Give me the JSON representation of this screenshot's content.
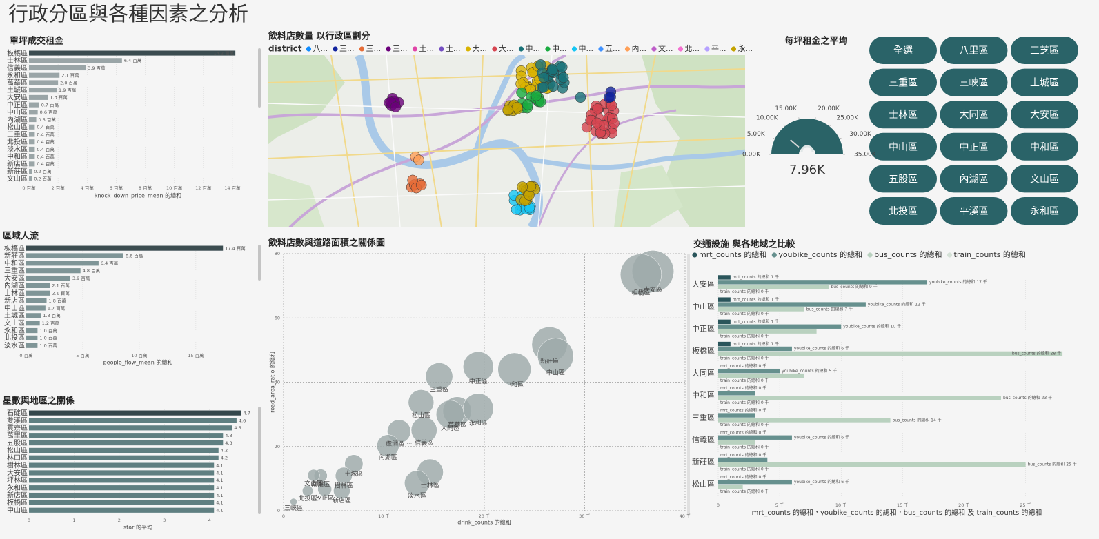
{
  "title": "行政分區與各種因素之分析",
  "buttons": [
    "全選",
    "八里區",
    "三芝區",
    "三重區",
    "三峽區",
    "土城區",
    "士林區",
    "大同區",
    "大安區",
    "中山區",
    "中正區",
    "中和區",
    "五股區",
    "內湖區",
    "文山區",
    "北投區",
    "平溪區",
    "永和區"
  ],
  "chart_data": [
    {
      "type": "bar",
      "orientation": "horizontal",
      "title": "單坪成交租金",
      "categories": [
        "板橋區",
        "士林區",
        "信義區",
        "永和區",
        "萬華區",
        "土城區",
        "大安區",
        "中正區",
        "中山區",
        "內湖區",
        "松山區",
        "三重區",
        "北投區",
        "淡水區",
        "中和區",
        "新店區",
        "新莊區",
        "文山區"
      ],
      "values": [
        14.2,
        6.4,
        3.9,
        2.1,
        2.0,
        1.9,
        1.3,
        0.7,
        0.6,
        0.5,
        0.4,
        0.4,
        0.4,
        0.4,
        0.4,
        0.4,
        0.2,
        0.2
      ],
      "value_labels": [
        "14.2 百萬",
        "6.4 百萬",
        "3.9 百萬",
        "2.1 百萬",
        "2.0 百萬",
        "1.9 百萬",
        "1.3 百萬",
        "0.7 百萬",
        "0.6 百萬",
        "0.5 百萬",
        "0.4 百萬",
        "0.4 百萬",
        "0.4 百萬",
        "0.4 百萬",
        "0.4 百萬",
        "0.4 百萬",
        "0.2 百萬",
        "0.2 百萬"
      ],
      "color": "#9aa5a7",
      "first_color": "#3b4c50",
      "xlim": [
        0,
        15
      ],
      "xticks": [
        {
          "value": 0,
          "label": "0 百萬"
        },
        {
          "value": 2,
          "label": "2 百萬"
        },
        {
          "value": 4,
          "label": "4 百萬"
        },
        {
          "value": 6,
          "label": "6 百萬"
        },
        {
          "value": 8,
          "label": "8 百萬"
        },
        {
          "value": 10,
          "label": "10 百萬"
        },
        {
          "value": 12,
          "label": "12 百萬"
        },
        {
          "value": 14,
          "label": "14 百萬"
        }
      ],
      "xlabel": "knock_down_price_mean 的總和"
    },
    {
      "type": "bar",
      "orientation": "horizontal",
      "title": "區域人流",
      "categories": [
        "板橋區",
        "新莊區",
        "中和區",
        "三重區",
        "大安區",
        "內湖區",
        "士林區",
        "新店區",
        "中山區",
        "土城區",
        "文山區",
        "永和區",
        "北投區",
        "淡水區"
      ],
      "values": [
        17.4,
        8.6,
        6.4,
        4.8,
        3.9,
        2.1,
        2.1,
        1.8,
        1.7,
        1.3,
        1.2,
        1.0,
        1.0,
        1.0
      ],
      "value_labels": [
        "17.4 百萬",
        "8.6 百萬",
        "6.4 百萬",
        "4.8 百萬",
        "3.9 百萬",
        "2.1 百萬",
        "2.1 百萬",
        "1.8 百萬",
        "1.7 百萬",
        "1.3 百萬",
        "1.2 百萬",
        "1.0 百萬",
        "1.0 百萬",
        "1.0 百萬"
      ],
      "color": "#7f9597",
      "first_color": "#3b4c50",
      "xlim": [
        0,
        19.4
      ],
      "xticks": [
        {
          "value": 0,
          "label": "0 百萬"
        },
        {
          "value": 5,
          "label": "5 百萬"
        },
        {
          "value": 10,
          "label": "10 百萬"
        },
        {
          "value": 15,
          "label": "15 百萬"
        }
      ],
      "xlabel": "people_flow_mean 的總和"
    },
    {
      "type": "bar",
      "orientation": "horizontal",
      "title": "星數與地區之關係",
      "categories": [
        "石碇區",
        "雙溪區",
        "貢寮區",
        "萬里區",
        "五股區",
        "松山區",
        "林口區",
        "樹林區",
        "大安區",
        "坪林區",
        "永和區",
        "新店區",
        "板橋區",
        "中山區"
      ],
      "values": [
        4.7,
        4.6,
        4.5,
        4.3,
        4.3,
        4.2,
        4.2,
        4.1,
        4.1,
        4.1,
        4.1,
        4.1,
        4.1,
        4.1
      ],
      "color": "#5f7f81",
      "first_color": "#34474b",
      "xlim": [
        0,
        4.8
      ],
      "xticks": [
        0,
        1,
        2,
        3,
        4
      ],
      "xlabel": "star 的平均"
    },
    {
      "type": "map",
      "title": "飲料店數量 以行政區劃分",
      "legend_title": "district",
      "series": [
        {
          "name": "八...",
          "color": "#118DFF"
        },
        {
          "name": "三...",
          "color": "#12239E"
        },
        {
          "name": "三...",
          "color": "#E66C37"
        },
        {
          "name": "三...",
          "color": "#6B007B"
        },
        {
          "name": "土...",
          "color": "#E044A7"
        },
        {
          "name": "土...",
          "color": "#744EC2"
        },
        {
          "name": "大...",
          "color": "#D9B300"
        },
        {
          "name": "大...",
          "color": "#D64550"
        },
        {
          "name": "中...",
          "color": "#197278"
        },
        {
          "name": "中...",
          "color": "#1AAB40"
        },
        {
          "name": "中...",
          "color": "#15C6F4"
        },
        {
          "name": "五...",
          "color": "#4092FF"
        },
        {
          "name": "內...",
          "color": "#FFA058"
        },
        {
          "name": "文...",
          "color": "#BE5DC9"
        },
        {
          "name": "北...",
          "color": "#F472D0"
        },
        {
          "name": "平...",
          "color": "#B5A1FF"
        },
        {
          "name": "永...",
          "color": "#C4A200"
        }
      ]
    },
    {
      "type": "gauge",
      "title": "每坪租金之平均",
      "value": 7960,
      "value_label": "7.96K",
      "color": "#2a6367",
      "ylim": [
        0,
        35000
      ],
      "yticks": [
        {
          "value": 0,
          "label": "0.00K"
        },
        {
          "value": 5000,
          "label": "5.00K"
        },
        {
          "value": 10000,
          "label": "10.00K"
        },
        {
          "value": 15000,
          "label": "15.00K"
        },
        {
          "value": 20000,
          "label": "20.00K"
        },
        {
          "value": 25000,
          "label": "25.00K"
        },
        {
          "value": 30000,
          "label": "30.00K"
        },
        {
          "value": 35000,
          "label": "35.00K"
        }
      ]
    },
    {
      "type": "scatter",
      "title": "飲料店數與道路面積之關係圖",
      "categories": [
        "大安區",
        "板橋區",
        "新莊區",
        "中山區",
        "中和區",
        "中正區",
        "三重區",
        "萬華區",
        "大同區",
        "永和區",
        "松山區",
        "信義區",
        "蘆洲區 ···",
        "內湖區",
        "士林區",
        "淡水區",
        "土城區",
        "南港區",
        "樹林區",
        "文山區",
        "汐止區",
        "北投區",
        "新店區",
        "三峽區"
      ],
      "x": [
        36.8,
        35.6,
        26.5,
        27.1,
        23.0,
        19.4,
        15.5,
        17.3,
        16.6,
        19.4,
        13.7,
        14.0,
        11.5,
        10.4,
        14.6,
        13.3,
        7.0,
        3.7,
        6.0,
        3.0,
        4.1,
        2.4,
        5.8,
        1.0
      ],
      "values": [
        74.5,
        73.5,
        51.7,
        48.1,
        44.0,
        44.8,
        41.8,
        31.0,
        30.0,
        31.8,
        33.7,
        25.1,
        24.7,
        20.2,
        12.0,
        8.6,
        14.6,
        10.9,
        10.9,
        11.0,
        6.7,
        6.2,
        6.2,
        2.8
      ],
      "color": "#9ea9aa",
      "xlim": [
        0,
        40
      ],
      "xticks": [
        0,
        {
          "value": 10,
          "label": "10 千"
        },
        {
          "value": 20,
          "label": "20 千"
        },
        {
          "value": 30,
          "label": "30 千"
        },
        {
          "value": 40,
          "label": "40 千"
        }
      ],
      "ylim": [
        0,
        80
      ],
      "yticks": [
        0,
        20,
        40,
        60,
        80
      ],
      "grid": true,
      "xlabel": "drink_counts 的總和",
      "ylabel": "road_area_ratio 的總和"
    },
    {
      "type": "bar",
      "orientation": "horizontal",
      "title": "交通設施 與各地域之比較",
      "categories": [
        "大安區",
        "中山區",
        "中正區",
        "板橋區",
        "大同區",
        "中和區",
        "三重區",
        "信義區",
        "新莊區",
        "松山區"
      ],
      "series": [
        {
          "name": "mrt_counts 的總和",
          "color": "#2a555b",
          "values": [
            1,
            1,
            1,
            1,
            0,
            0,
            0,
            0,
            0,
            0
          ],
          "value_labels": [
            "mrt_counts 的總和 1 千",
            "mrt_counts 的總和 1 千",
            "mrt_counts 的總和 1 千",
            "mrt_counts 的總和 1 千",
            "mrt_counts 的總和 0 千",
            "mrt_counts 的總和 0 千",
            "mrt_counts 的總和 0 千",
            "mrt_counts 的總和 0 千",
            "mrt_counts 的總和 0 千",
            "mrt_counts 的總和 0 千"
          ]
        },
        {
          "name": "youbike_counts 的總和",
          "color": "#66908e",
          "values": [
            17,
            12,
            10,
            6,
            5,
            3,
            3,
            6,
            4,
            6
          ],
          "value_labels": [
            "youbike_counts 的總和 17 千",
            "youbike_counts 的總和 12 千",
            "youbike_counts 的總和 10 千",
            "youbike_counts 的總和 6 千",
            "youbike_counts 的總和 5 千",
            null,
            null,
            "youbike_counts 的總和 6 千",
            null,
            "youbike_counts 的總和 6 千"
          ]
        },
        {
          "name": "bus_counts 的總和",
          "color": "#b9d1bf",
          "values": [
            9,
            7,
            8,
            28,
            7,
            23,
            14,
            3,
            25,
            2
          ],
          "value_labels": [
            "bus_counts 的總和 9 千",
            "bus_counts 的總和 7 千",
            null,
            "bus_counts 的總和 28 千",
            null,
            "bus_counts 的總和 23 千",
            "bus_counts 的總和 14 千",
            null,
            "bus_counts 的總和 25 千",
            null
          ]
        },
        {
          "name": "train_counts 的總和",
          "color": "#d5e1d7",
          "values": [
            0,
            0,
            0,
            0,
            0,
            0,
            0,
            0,
            0,
            0
          ],
          "value_labels": [
            "train_counts 的總和 0 千",
            "train_counts 的總和 0 千",
            "train_counts 的總和 0 千",
            "train_counts 的總和 0 千",
            "train_counts 的總和 0 千",
            "train_counts 的總和 0 千",
            "train_counts 的總和 0 千",
            "train_counts 的總和 0 千",
            "train_counts 的總和 0 千",
            "train_counts 的總和 0 千"
          ]
        }
      ],
      "xlim": [
        0,
        28.5
      ],
      "xticks": [
        0,
        {
          "value": 5,
          "label": "5 千"
        },
        {
          "value": 10,
          "label": "10 千"
        },
        {
          "value": 15,
          "label": "15 千"
        },
        {
          "value": 20,
          "label": "20 千"
        },
        {
          "value": 25,
          "label": "25 千"
        }
      ],
      "xlabel": "mrt_counts 的總和，youbike_counts 的總和，bus_counts 的總和 及 train_counts 的總和"
    }
  ]
}
